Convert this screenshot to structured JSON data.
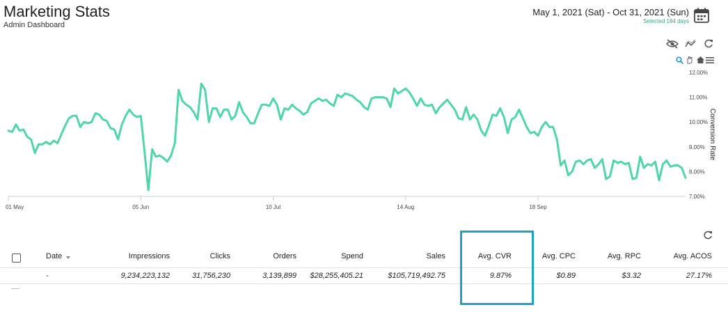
{
  "header": {
    "title": "Marketing Stats",
    "subtitle": "Admin Dashboard",
    "date_range": "May 1, 2021 (Sat) - Oct 31, 2021 (Sun)",
    "selected_days": "Selected 184 days"
  },
  "colors": {
    "line": "#4fd6a8",
    "accent": "#1aa3c4",
    "selected_days": "#3aa07a"
  },
  "icons": [
    "calendar-icon",
    "eye-off-icon",
    "trend-icon",
    "refresh-icon",
    "zoom-icon",
    "pan-icon",
    "home-icon",
    "menu-icon"
  ],
  "chart_data": {
    "type": "line",
    "title": "",
    "xlabel": "",
    "ylabel": "Conversion Rate",
    "ylim": [
      7.0,
      12.0
    ],
    "yticks": [
      "12.00%",
      "11.00%",
      "10.00%",
      "9.00%",
      "8.00%",
      "7.00%"
    ],
    "xticks": [
      "01 May",
      "05 Jun",
      "10 Jul",
      "14 Aug",
      "18 Sep"
    ],
    "xtick_days": [
      0,
      35,
      70,
      105,
      140
    ],
    "grid": false,
    "series": [
      {
        "values": [
          9.65,
          9.6,
          9.9,
          9.65,
          9.7,
          9.4,
          9.3,
          8.75,
          9.1,
          9.1,
          9.2,
          9.1,
          9.25,
          9.15,
          9.5,
          9.85,
          10.15,
          10.25,
          10.25,
          9.8,
          10.0,
          9.95,
          10.0,
          10.35,
          10.3,
          10.1,
          10.05,
          9.75,
          9.7,
          9.3,
          9.9,
          10.25,
          10.5,
          10.3,
          10.2,
          10.25,
          8.8,
          7.25,
          8.9,
          8.6,
          8.65,
          8.55,
          8.4,
          8.65,
          9.15,
          11.3,
          10.85,
          10.7,
          10.6,
          10.4,
          10.1,
          11.55,
          11.3,
          10.0,
          10.55,
          10.55,
          10.2,
          10.5,
          10.5,
          10.1,
          10.25,
          10.8,
          10.4,
          10.2,
          9.95,
          9.95,
          10.35,
          10.7,
          10.7,
          10.65,
          10.95,
          10.7,
          10.1,
          10.55,
          10.5,
          10.7,
          10.55,
          10.45,
          10.3,
          10.4,
          10.75,
          10.85,
          10.95,
          10.85,
          10.9,
          10.75,
          10.65,
          11.1,
          11.0,
          11.15,
          11.1,
          11.05,
          10.9,
          10.8,
          10.6,
          10.5,
          10.95,
          11.0,
          11.0,
          11.0,
          10.95,
          10.6,
          11.35,
          11.15,
          11.25,
          11.35,
          11.2,
          10.95,
          10.65,
          10.95,
          10.7,
          10.65,
          10.7,
          10.35,
          10.6,
          10.75,
          10.9,
          10.7,
          10.5,
          10.15,
          10.1,
          10.6,
          10.1,
          10.3,
          10.1,
          9.65,
          9.45,
          9.85,
          10.3,
          10.25,
          10.55,
          10.2,
          9.55,
          10.1,
          10.2,
          10.5,
          10.15,
          9.8,
          9.55,
          9.6,
          9.45,
          9.8,
          10.0,
          9.8,
          9.8,
          9.3,
          8.25,
          8.45,
          7.85,
          8.0,
          8.4,
          8.45,
          8.3,
          8.45,
          8.5,
          8.15,
          8.3,
          8.5,
          7.7,
          7.8,
          8.45,
          8.35,
          8.4,
          8.3,
          8.35,
          7.7,
          7.75,
          8.6,
          8.15,
          8.3,
          8.25,
          8.4,
          7.65,
          8.3,
          8.45,
          8.2,
          8.25,
          8.25,
          8.15,
          7.75
        ]
      }
    ]
  },
  "table": {
    "headers": {
      "date": "Date",
      "impressions": "Impressions",
      "clicks": "Clicks",
      "orders": "Orders",
      "spend": "Spend",
      "sales": "Sales",
      "avg_cvr": "Avg. CVR",
      "avg_cpc": "Avg. CPC",
      "avg_rpc": "Avg. RPC",
      "avg_acos": "Avg. ACOS"
    },
    "row": {
      "date": "-",
      "impressions": "9,234,223,132",
      "clicks": "31,756,230",
      "orders": "3,139,899",
      "spend": "$28,255,405.21",
      "sales": "$105,719,492.75",
      "avg_cvr": "9.87%",
      "avg_cpc": "$0.89",
      "avg_rpc": "$3.32",
      "avg_acos": "27.17%"
    }
  }
}
